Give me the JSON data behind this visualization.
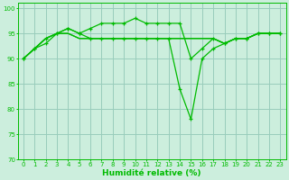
{
  "xlabel": "Humidité relative (%)",
  "background_color": "#cceedd",
  "grid_color": "#99ccbb",
  "line_color": "#00bb00",
  "xlim": [
    -0.5,
    23.5
  ],
  "ylim": [
    70,
    101
  ],
  "yticks": [
    70,
    75,
    80,
    85,
    90,
    95,
    100
  ],
  "xticks": [
    0,
    1,
    2,
    3,
    4,
    5,
    6,
    7,
    8,
    9,
    10,
    11,
    12,
    13,
    14,
    15,
    16,
    17,
    18,
    19,
    20,
    21,
    22,
    23
  ],
  "series1": [
    90,
    92,
    93,
    95,
    96,
    95,
    96,
    97,
    97,
    97,
    98,
    97,
    97,
    97,
    97,
    90,
    92,
    94,
    93,
    94,
    94,
    95,
    95,
    95
  ],
  "series2": [
    90,
    92,
    94,
    95,
    96,
    95,
    94,
    94,
    94,
    94,
    94,
    94,
    94,
    94,
    84,
    78,
    90,
    92,
    93,
    94,
    94,
    95,
    95,
    95
  ],
  "series3": [
    90,
    92,
    94,
    95,
    95,
    94,
    94,
    94,
    94,
    94,
    94,
    94,
    94,
    94,
    94,
    94,
    94,
    94,
    93,
    94,
    94,
    95,
    95,
    95
  ],
  "series4": [
    90,
    92,
    94,
    95,
    95,
    94,
    94,
    94,
    94,
    94,
    94,
    94,
    94,
    94,
    94,
    94,
    94,
    94,
    93,
    94,
    94,
    95,
    95,
    95
  ],
  "tick_fontsize": 5.0,
  "xlabel_fontsize": 6.5
}
